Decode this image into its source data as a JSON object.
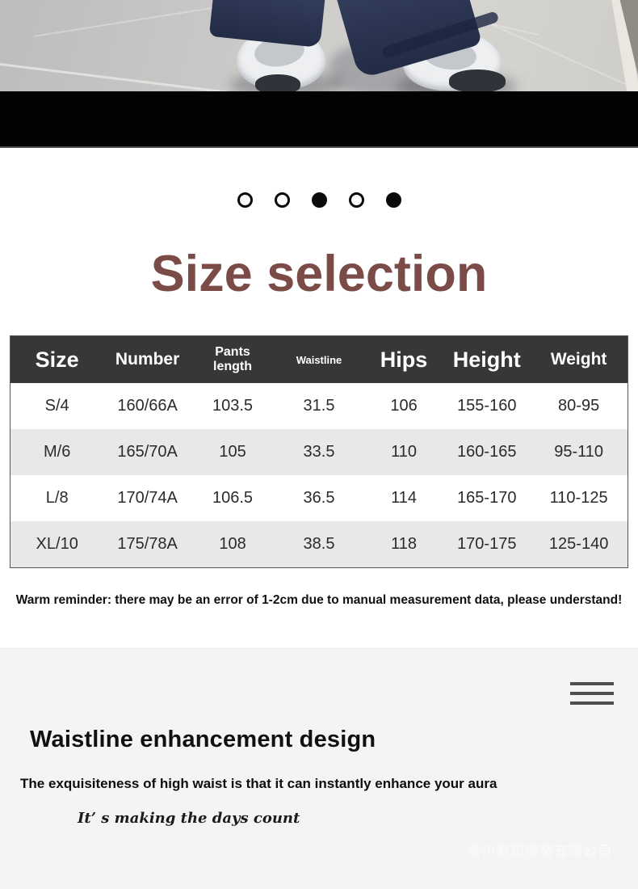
{
  "colors": {
    "accent_title": "#7b4b48",
    "table_header_bg": "#373737",
    "row_alt_bg": "#e9e7e8",
    "section_bg": "#f5f4f5",
    "black_band": "#020202"
  },
  "carousel": {
    "dots": [
      "outline",
      "outline",
      "filled",
      "outline",
      "filled"
    ]
  },
  "title": {
    "text": "Size selection"
  },
  "size_table": {
    "columns": [
      {
        "label": "Size",
        "emphasis": "xl",
        "width": "15.1%"
      },
      {
        "label": "Number",
        "emphasis": "lg",
        "width": "14.2%"
      },
      {
        "label": "Pants length",
        "emphasis": "sm",
        "width": "13.4%"
      },
      {
        "label": "Waistline",
        "emphasis": "xs",
        "width": "14.6%"
      },
      {
        "label": "Hips",
        "emphasis": "xl",
        "width": "12.9%"
      },
      {
        "label": "Height",
        "emphasis": "xl",
        "width": "14.0%"
      },
      {
        "label": "Weight",
        "emphasis": "lg",
        "width": "15.8%"
      }
    ],
    "rows": [
      [
        "S/4",
        "160/66A",
        "103.5",
        "31.5",
        "106",
        "155-160",
        "80-95"
      ],
      [
        "M/6",
        "165/70A",
        "105",
        "33.5",
        "110",
        "160-165",
        "95-110"
      ],
      [
        "L/8",
        "170/74A",
        "106.5",
        "36.5",
        "114",
        "165-170",
        "110-125"
      ],
      [
        "XL/10",
        "175/78A",
        "108",
        "38.5",
        "118",
        "170-175",
        "125-140"
      ]
    ]
  },
  "reminder": "Warm reminder: there may be an error of 1-2cm due to manual measurement data, please understand!",
  "section2": {
    "heading": "Waistline enhancement design",
    "subheading": "The exquisiteness of high waist is that it can instantly enhance your aura",
    "tagline": "It’ s making the days count",
    "watermark": "泉州魅影服装有限公司"
  }
}
